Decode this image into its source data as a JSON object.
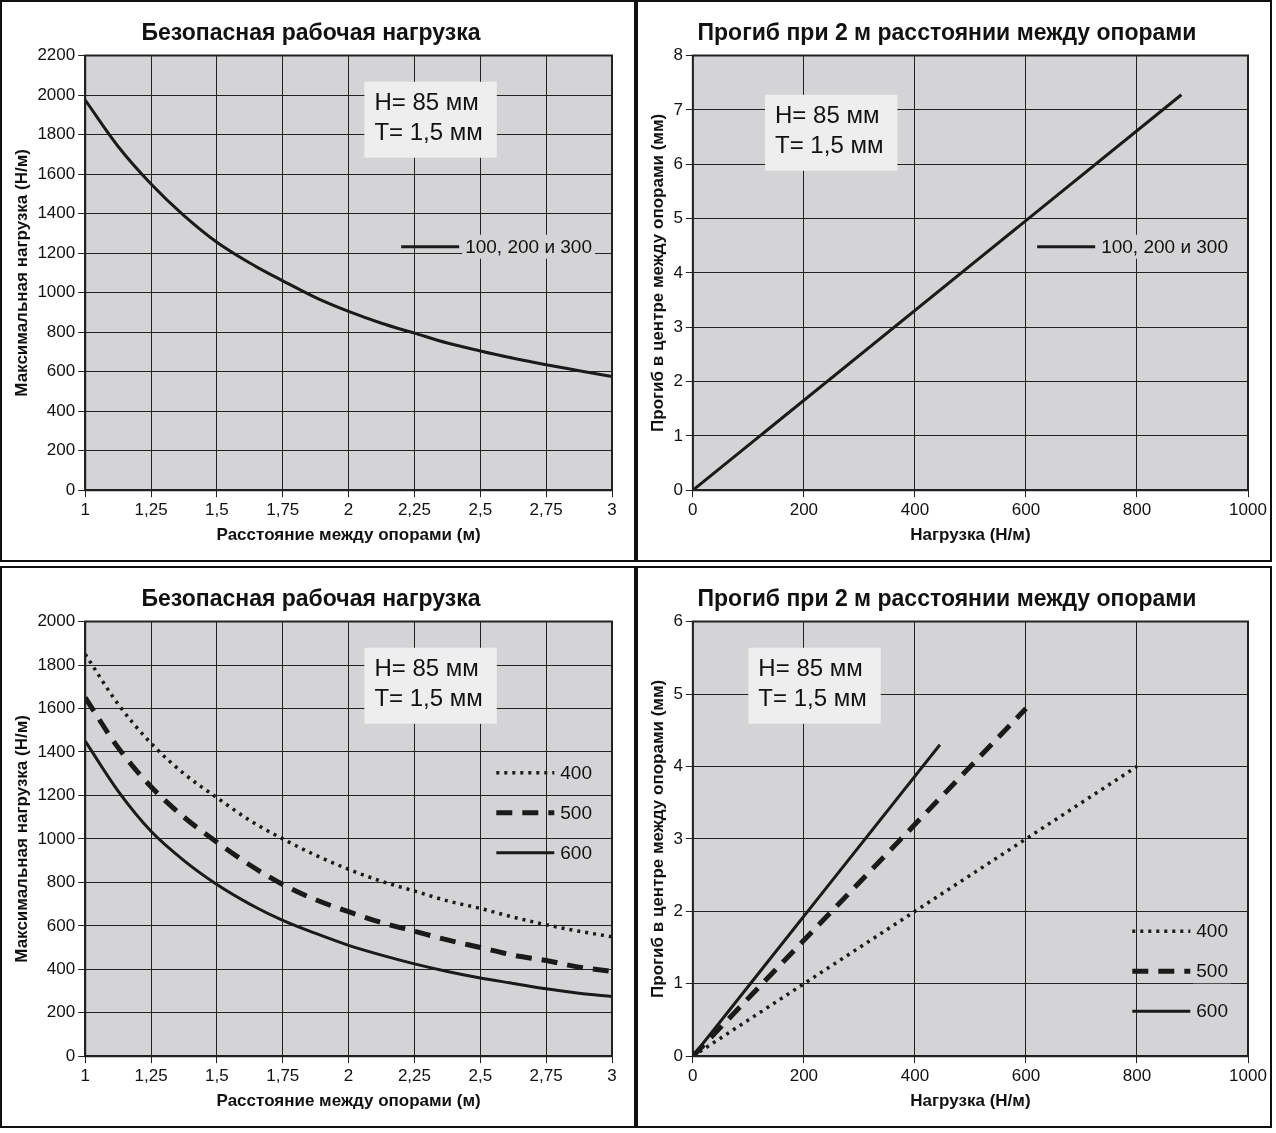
{
  "chart_data": [
    {
      "type": "line",
      "title": "Безопасная рабочая нагрузка",
      "xlabel": "Расстояние между опорами (м)",
      "ylabel": "Максимальная нагрузка (Н/м)",
      "annotations": [
        "H= 85 мм",
        "T= 1,5 мм"
      ],
      "x": [
        1,
        1.125,
        1.25,
        1.375,
        1.5,
        1.625,
        1.75,
        1.875,
        2,
        2.125,
        2.25,
        2.375,
        2.5,
        2.625,
        2.75,
        2.875,
        3
      ],
      "series": [
        {
          "name": "100, 200 и 300",
          "color": "#1a1a1a",
          "line_style": "solid",
          "values": [
            1975,
            1740,
            1550,
            1390,
            1255,
            1150,
            1060,
            975,
            905,
            845,
            795,
            745,
            705,
            668,
            635,
            605,
            575
          ]
        }
      ],
      "xlim": [
        1,
        3
      ],
      "xticks": [
        1,
        {
          "value": 1.25,
          "label": "1,25"
        },
        {
          "value": 1.5,
          "label": "1,5"
        },
        {
          "value": 1.75,
          "label": "1,75"
        },
        2,
        {
          "value": 2.25,
          "label": "2,25"
        },
        {
          "value": 2.5,
          "label": "2,5"
        },
        {
          "value": 2.75,
          "label": "2,75"
        },
        3
      ],
      "ylim": [
        0,
        2200
      ],
      "yticks": [
        0,
        200,
        400,
        600,
        800,
        1000,
        1200,
        1400,
        1600,
        1800,
        2000,
        2200
      ],
      "grid": true,
      "legend": "right",
      "marker": "none"
    },
    {
      "type": "line",
      "title": "Прогиб при 2 м расстоянии между опорами",
      "xlabel": "Нагрузка (Н/м)",
      "ylabel": "Прогиб в центре между опорами (мм)",
      "annotations": [
        "H= 85 мм",
        "T= 1,5 мм"
      ],
      "series": [
        {
          "name": "100, 200 и 300",
          "color": "#1a1a1a",
          "line_style": "solid",
          "x": [
            0,
            880
          ],
          "values": [
            0,
            7.28
          ]
        }
      ],
      "xlim": [
        0,
        1000
      ],
      "xticks": [
        0,
        200,
        400,
        600,
        800,
        1000
      ],
      "ylim": [
        0,
        8
      ],
      "yticks": [
        0,
        1,
        2,
        3,
        4,
        5,
        6,
        7,
        8
      ],
      "grid": true,
      "legend": "right",
      "marker": "none"
    },
    {
      "type": "line",
      "title": "Безопасная рабочая нагрузка",
      "xlabel": "Расстояние между опорами (м)",
      "ylabel": "Максимальная нагрузка (Н/м)",
      "annotations": [
        "H= 85 мм",
        "T= 1,5 мм"
      ],
      "x": [
        1,
        1.125,
        1.25,
        1.375,
        1.5,
        1.625,
        1.75,
        1.875,
        2,
        2.125,
        2.25,
        2.375,
        2.5,
        2.625,
        2.75,
        2.875,
        3
      ],
      "series": [
        {
          "name": "400",
          "color": "#1a1a1a",
          "line_style": "dotted",
          "values": [
            1850,
            1620,
            1440,
            1300,
            1190,
            1085,
            1000,
            925,
            860,
            805,
            760,
            715,
            680,
            640,
            605,
            575,
            550
          ]
        },
        {
          "name": "500",
          "color": "#1a1a1a",
          "line_style": "dashed",
          "values": [
            1650,
            1420,
            1240,
            1100,
            985,
            880,
            790,
            720,
            665,
            615,
            575,
            535,
            500,
            465,
            440,
            410,
            390
          ]
        },
        {
          "name": "600",
          "color": "#1a1a1a",
          "line_style": "solid",
          "values": [
            1450,
            1220,
            1035,
            900,
            790,
            700,
            625,
            565,
            510,
            465,
            425,
            390,
            360,
            335,
            310,
            290,
            275
          ]
        }
      ],
      "xlim": [
        1,
        3
      ],
      "xticks": [
        1,
        {
          "value": 1.25,
          "label": "1,25"
        },
        {
          "value": 1.5,
          "label": "1,5"
        },
        {
          "value": 1.75,
          "label": "1,75"
        },
        2,
        {
          "value": 2.25,
          "label": "2,25"
        },
        {
          "value": 2.5,
          "label": "2,5"
        },
        {
          "value": 2.75,
          "label": "2,75"
        },
        3
      ],
      "ylim": [
        0,
        2000
      ],
      "yticks": [
        0,
        200,
        400,
        600,
        800,
        1000,
        1200,
        1400,
        1600,
        1800,
        2000
      ],
      "grid": true,
      "legend": "right",
      "marker": "none"
    },
    {
      "type": "line",
      "title": "Прогиб при 2 м расстоянии между опорами",
      "xlabel": "Нагрузка (Н/м)",
      "ylabel": "Прогиб в центре между опорами (мм)",
      "annotations": [
        "H= 85 мм",
        "T= 1,5 мм"
      ],
      "series": [
        {
          "name": "400",
          "color": "#1a1a1a",
          "line_style": "dotted",
          "x": [
            0,
            800
          ],
          "values": [
            0,
            4
          ]
        },
        {
          "name": "500",
          "color": "#1a1a1a",
          "line_style": "dashed",
          "x": [
            0,
            600
          ],
          "values": [
            0,
            4.8
          ]
        },
        {
          "name": "600",
          "color": "#1a1a1a",
          "line_style": "solid",
          "x": [
            0,
            445
          ],
          "values": [
            0,
            4.3
          ]
        }
      ],
      "xlim": [
        0,
        1000
      ],
      "xticks": [
        0,
        200,
        400,
        600,
        800,
        1000
      ],
      "ylim": [
        0,
        6
      ],
      "yticks": [
        0,
        1,
        2,
        3,
        4,
        5,
        6
      ],
      "grid": true,
      "legend": "bottom right",
      "marker": "none"
    }
  ]
}
